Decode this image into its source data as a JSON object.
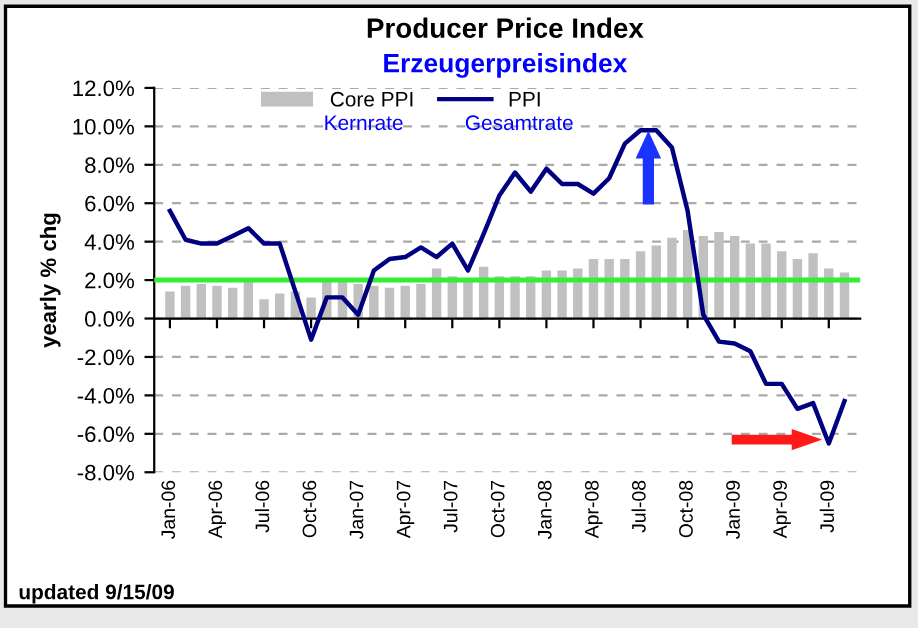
{
  "chart_data": {
    "type": "bar",
    "title": "Producer Price Index",
    "subtitle": "Erzeugerpreisindex",
    "ylabel": "yearly % chg",
    "categories": [
      "Jan-06",
      null,
      null,
      "Apr-06",
      null,
      null,
      "Jul-06",
      null,
      null,
      "Oct-06",
      null,
      null,
      "Jan-07",
      null,
      null,
      "Apr-07",
      null,
      null,
      "Jul-07",
      null,
      null,
      "Oct-07",
      null,
      null,
      "Jan-08",
      null,
      null,
      "Apr-08",
      null,
      null,
      "Jul-08",
      null,
      null,
      "Oct-08",
      null,
      null,
      "Jan-09",
      null,
      null,
      "Apr-09",
      null,
      null,
      "Jul-09",
      null
    ],
    "series": [
      {
        "name": "Core PPI",
        "color": "#c0c0c0",
        "values": [
          1.4,
          1.7,
          1.8,
          1.7,
          1.6,
          2.0,
          1.0,
          1.3,
          1.4,
          1.1,
          2.0,
          2.0,
          1.8,
          1.7,
          1.6,
          1.7,
          1.8,
          2.6,
          2.2,
          2.0,
          2.7,
          2.2,
          2.2,
          2.2,
          2.5,
          2.5,
          2.6,
          3.1,
          3.1,
          3.1,
          3.5,
          3.8,
          4.2,
          4.6,
          4.3,
          4.5,
          4.3,
          3.9,
          3.9,
          3.5,
          3.1,
          3.4,
          2.6,
          2.4
        ]
      },
      {
        "name": "PPI",
        "type": "line",
        "color": "#000080",
        "values": [
          5.6,
          4.1,
          3.9,
          3.9,
          4.3,
          4.7,
          3.9,
          3.9,
          1.4,
          -1.1,
          1.1,
          1.1,
          0.2,
          2.5,
          3.1,
          3.2,
          3.7,
          3.2,
          3.9,
          2.5,
          4.4,
          6.4,
          7.6,
          6.6,
          7.8,
          7.0,
          7.0,
          6.5,
          7.3,
          9.1,
          9.8,
          9.8,
          8.9,
          5.6,
          0.2,
          -1.2,
          -1.3,
          -1.7,
          -3.4,
          -3.4,
          -4.7,
          -4.4,
          -6.5,
          -4.3
        ]
      }
    ],
    "ylim": [
      -8,
      12
    ],
    "yticks": [
      {
        "value": -8,
        "label": "-8.0%"
      },
      {
        "value": -6,
        "label": "-6.0%"
      },
      {
        "value": -4,
        "label": "-4.0%"
      },
      {
        "value": -2,
        "label": "-2.0%"
      },
      {
        "value": 0,
        "label": "0.0%"
      },
      {
        "value": 2,
        "label": "2.0%"
      },
      {
        "value": 4,
        "label": "4.0%"
      },
      {
        "value": 6,
        "label": "6.0%"
      },
      {
        "value": 8,
        "label": "8.0%"
      },
      {
        "value": 10,
        "label": "10.0%"
      },
      {
        "value": 12,
        "label": "12.0%"
      }
    ],
    "grid": "y",
    "legend": "top",
    "marker": "none",
    "line_style": "solid",
    "ref_lines": [
      {
        "axis": "y",
        "value": 2,
        "color": "#33ee33",
        "line_style": "solid"
      }
    ],
    "annotations": [
      "Kernrate",
      "Gesamtrate",
      "updated 9/15/09"
    ]
  }
}
